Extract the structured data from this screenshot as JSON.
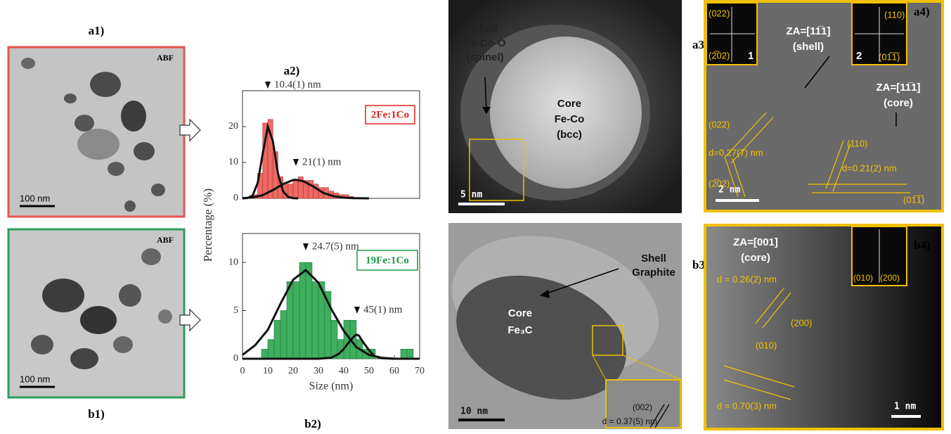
{
  "panels": {
    "a1": {
      "label": "a1)",
      "mode": "ABF",
      "scale_bar": "100 nm"
    },
    "b1": {
      "label": "b1)",
      "mode": "ABF",
      "scale_bar": "100 nm"
    },
    "a3": {
      "label": "a3)",
      "shell": [
        "Shell",
        "Fe-Co-O",
        "(spinel)"
      ],
      "core": [
        "Core",
        "Fe-Co",
        "(bcc)"
      ],
      "scale_bar": "5 nm"
    },
    "b3": {
      "label": "b3)",
      "shell": [
        "Shell",
        "Graphite"
      ],
      "core": [
        "Core",
        "Fe₃C"
      ],
      "scale_bar": "10 nm",
      "plane": "(002)",
      "spacing": "d = 0.37(5) nm"
    },
    "a4": {
      "label": "a4)",
      "inset_1": {
        "number": "1",
        "spots": [
          "(022)",
          "(2̅02)"
        ]
      },
      "inset_2": {
        "number": "2",
        "spots": [
          "(110)",
          "(01̅1̅)"
        ]
      },
      "shell_zone": [
        "ZA=[11̅1]",
        "(shell)"
      ],
      "core_zone": [
        "ZA=[11̅1]",
        "(core)"
      ],
      "shell_planes": [
        "(022)",
        "(2̅02)"
      ],
      "shell_spacing": "d=0.27(7) nm",
      "core_planes": [
        "(110)",
        "(01̅1̅)"
      ],
      "core_spacing": "d=0.21(2) nm",
      "scale_bar": "2 nm"
    },
    "b4": {
      "label": "b4)",
      "zone": [
        "ZA=[001]",
        "(core)"
      ],
      "spacing_1": "d = 0.26(2) nm",
      "plane_1": "(200)",
      "plane_2": "(010)",
      "spacing_2": "d = 0.70(3) nm",
      "inset_spots": [
        "(010)",
        "(200)"
      ],
      "scale_bar": "1 nm"
    }
  },
  "chart_data": [
    {
      "type": "histogram",
      "title": "a2)",
      "y_label": "Percentage (%)",
      "bins": [
        4,
        6,
        8,
        10,
        12,
        14,
        16,
        18,
        20,
        22,
        24,
        26,
        28,
        30,
        32,
        34,
        36,
        38,
        40,
        42,
        44
      ],
      "values": [
        1,
        7,
        21,
        22,
        13,
        6,
        4,
        4,
        5,
        6,
        5,
        5,
        4,
        3,
        3,
        2,
        1.5,
        1,
        1,
        0.5
      ],
      "color": "#ec6a62",
      "edge_color": "#b03030",
      "xlim": [
        0,
        70
      ],
      "ylim": [
        0,
        30
      ],
      "yticks": [
        0,
        10,
        20
      ],
      "fit_curves": [
        {
          "x": [
            0,
            2,
            4,
            6,
            8,
            10,
            12,
            14,
            16,
            18,
            20,
            22
          ],
          "values": [
            0,
            0.1,
            0.8,
            4.3,
            12.5,
            20,
            16,
            7,
            2,
            0.4,
            0.05,
            0
          ]
        },
        {
          "x": [
            0,
            4,
            8,
            12,
            16,
            20,
            21,
            24,
            28,
            32,
            36,
            40,
            44,
            50
          ],
          "values": [
            0.06,
            0.27,
            0.9,
            2.3,
            4,
            5.1,
            5.2,
            4.8,
            3.3,
            1.5,
            0.6,
            0.2,
            0.05,
            0
          ]
        }
      ],
      "peak_labels": [
        "10.4(1) nm",
        "21(1) nm"
      ],
      "sample_label": "2Fe:1Co",
      "sample_color": "#e02020"
    },
    {
      "type": "histogram",
      "title": "b2)",
      "x_label": "Size (nm)",
      "bins": [
        7.5,
        10,
        12.5,
        15,
        17.5,
        20,
        22.5,
        25,
        27.5,
        30,
        32.5,
        35,
        37.5,
        40,
        42.5,
        45,
        47.5,
        50,
        52.5,
        55,
        57.5,
        60,
        62.5,
        65,
        67.5
      ],
      "values": [
        1,
        2,
        4,
        5,
        8,
        8,
        10,
        10,
        8,
        8,
        7,
        4,
        2,
        4,
        4,
        2,
        1,
        1,
        0,
        0,
        0,
        0,
        1,
        1
      ],
      "color": "#3fae5f",
      "edge_color": "#1f7a3a",
      "xlim": [
        0,
        70
      ],
      "xticks": [
        0,
        10,
        20,
        30,
        40,
        50,
        60,
        70
      ],
      "ylim": [
        0,
        13
      ],
      "yticks": [
        0,
        5,
        10
      ],
      "fit_curves": [
        {
          "x": [
            0,
            5,
            10,
            15,
            20,
            25,
            30,
            35,
            40,
            45,
            50,
            55,
            60,
            70
          ],
          "values": [
            0.4,
            1.4,
            3,
            5.7,
            8.2,
            9.2,
            7.9,
            5.2,
            2.9,
            1.2,
            0.4,
            0.1,
            0,
            0
          ]
        },
        {
          "x": [
            0,
            30,
            35,
            38,
            40,
            42,
            44,
            45,
            46,
            48,
            50,
            52,
            55,
            60,
            70
          ],
          "values": [
            0,
            0,
            0.1,
            0.5,
            1,
            1.7,
            2.3,
            2.5,
            2.4,
            1.6,
            0.9,
            0.3,
            0.05,
            0,
            0
          ]
        }
      ],
      "peak_labels": [
        "24.7(5) nm",
        "45(1) nm"
      ],
      "sample_label": "19Fe:1Co",
      "sample_color": "#1e9a46"
    }
  ]
}
